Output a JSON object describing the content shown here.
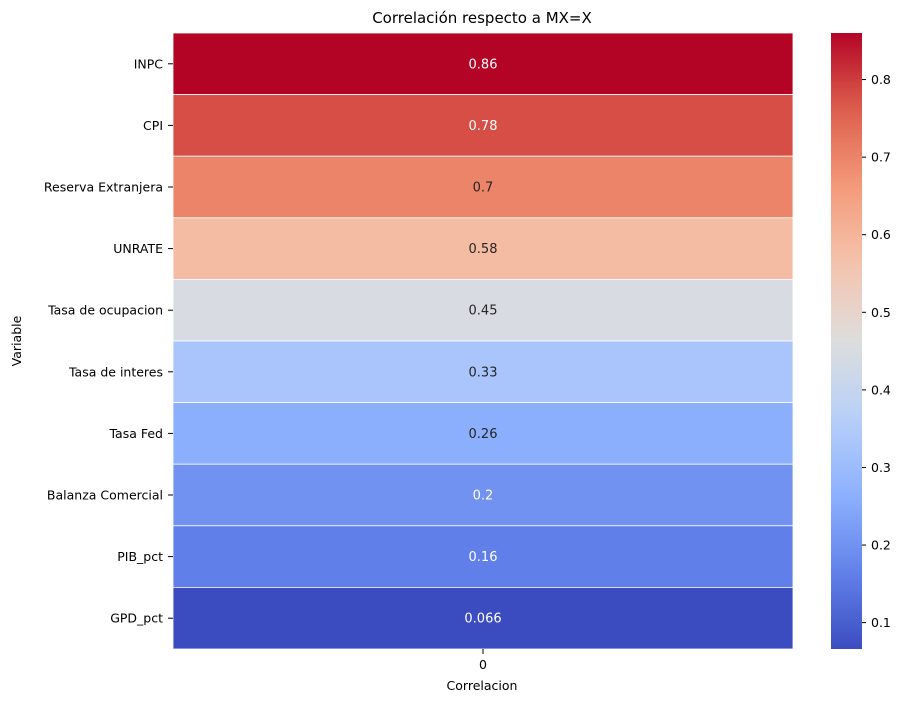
{
  "chart_data": {
    "type": "heatmap",
    "title": "Correlación respecto a MX=X",
    "xlabel": "Correlacion",
    "ylabel": "Variable",
    "x_categories": [
      "0"
    ],
    "rows": [
      "INPC",
      "CPI",
      "Reserva Extranjera",
      "UNRATE",
      "Tasa de ocupacion",
      "Tasa de interes",
      "Tasa Fed",
      "Balanza Comercial",
      "PIB_pct",
      "GPD_pct"
    ],
    "values": [
      0.86,
      0.78,
      0.7,
      0.58,
      0.45,
      0.33,
      0.26,
      0.2,
      0.16,
      0.066
    ],
    "value_labels": [
      "0.86",
      "0.78",
      "0.7",
      "0.58",
      "0.45",
      "0.33",
      "0.26",
      "0.2",
      "0.16",
      "0.066"
    ],
    "colormap": "coolwarm",
    "vmin": 0.066,
    "vmax": 0.86,
    "colorbar_ticks": [
      0.1,
      0.2,
      0.3,
      0.4,
      0.5,
      0.6,
      0.7,
      0.8
    ],
    "colorbar_tick_labels": [
      "0.1",
      "0.2",
      "0.3",
      "0.4",
      "0.5",
      "0.6",
      "0.7",
      "0.8"
    ],
    "grid": false,
    "legend": "colorbar-right"
  }
}
